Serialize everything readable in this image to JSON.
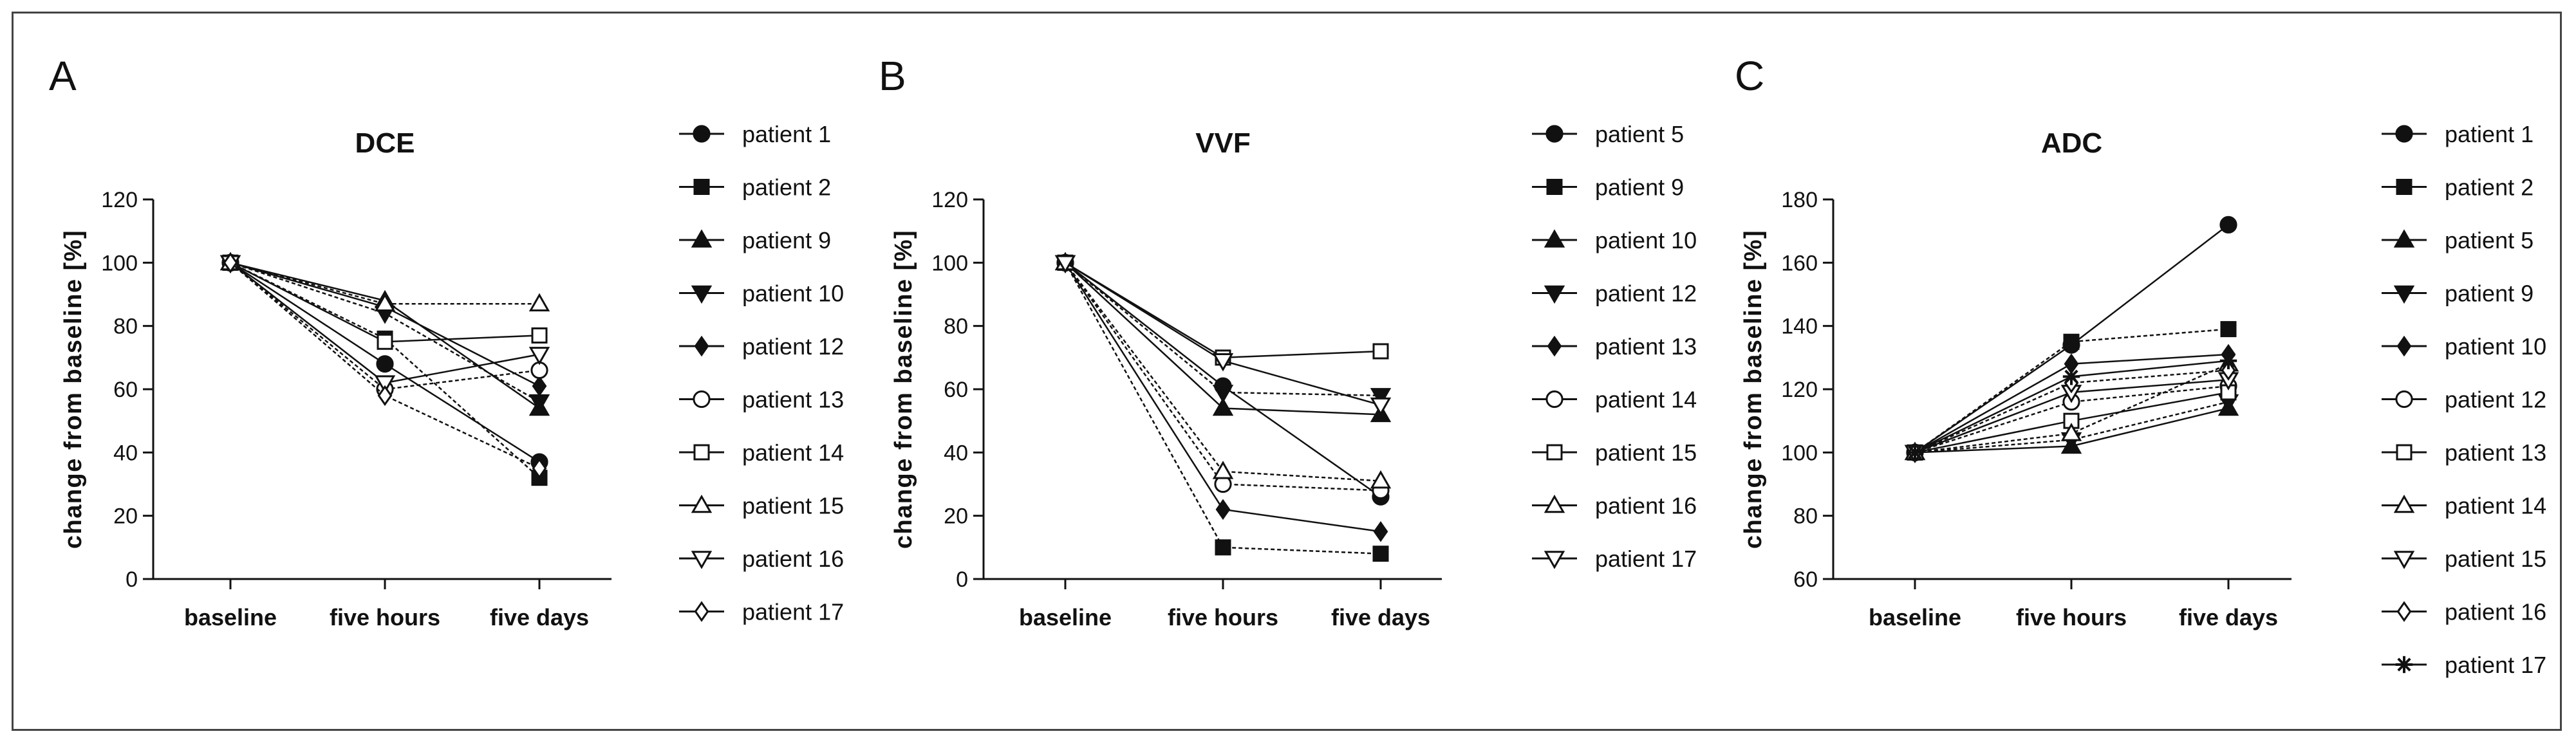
{
  "figure": {
    "panels": [
      "A",
      "B",
      "C"
    ]
  },
  "chart_data": [
    {
      "type": "line",
      "panel": "A",
      "title": "DCE",
      "xlabel": "",
      "ylabel": "change from baseline [%]",
      "categories": [
        "baseline",
        "five hours",
        "five days"
      ],
      "ylim": [
        0,
        120
      ],
      "yticks": [
        0,
        20,
        40,
        60,
        80,
        100,
        120
      ],
      "grid": false,
      "legend": "right",
      "series": [
        {
          "name": "patient 1",
          "marker": "circle",
          "values": [
            100,
            68,
            37
          ]
        },
        {
          "name": "patient 2",
          "marker": "square",
          "values": [
            100,
            76,
            32
          ]
        },
        {
          "name": "patient 9",
          "marker": "triangle",
          "values": [
            100,
            88,
            54
          ]
        },
        {
          "name": "patient 10",
          "marker": "triangle-down",
          "values": [
            100,
            84,
            56
          ]
        },
        {
          "name": "patient 12",
          "marker": "diamond",
          "values": [
            100,
            86,
            61
          ]
        },
        {
          "name": "patient 13",
          "marker": "circle-open",
          "values": [
            100,
            60,
            66
          ]
        },
        {
          "name": "patient 14",
          "marker": "square-open",
          "values": [
            100,
            75,
            77
          ]
        },
        {
          "name": "patient 15",
          "marker": "triangle-open",
          "values": [
            100,
            87,
            87
          ]
        },
        {
          "name": "patient 16",
          "marker": "triangle-down-open",
          "values": [
            100,
            62,
            71
          ]
        },
        {
          "name": "patient 17",
          "marker": "diamond-open",
          "values": [
            100,
            58,
            35
          ]
        }
      ]
    },
    {
      "type": "line",
      "panel": "B",
      "title": "VVF",
      "xlabel": "",
      "ylabel": "change from baseline [%]",
      "categories": [
        "baseline",
        "five hours",
        "five days"
      ],
      "ylim": [
        0,
        120
      ],
      "yticks": [
        0,
        20,
        40,
        60,
        80,
        100,
        120
      ],
      "grid": false,
      "legend": "right",
      "series": [
        {
          "name": "patient 5",
          "marker": "circle",
          "values": [
            100,
            61,
            26
          ]
        },
        {
          "name": "patient 9",
          "marker": "square",
          "values": [
            100,
            10,
            8
          ]
        },
        {
          "name": "patient 10",
          "marker": "triangle",
          "values": [
            100,
            54,
            52
          ]
        },
        {
          "name": "patient 12",
          "marker": "triangle-down",
          "values": [
            100,
            59,
            58
          ]
        },
        {
          "name": "patient 13",
          "marker": "diamond",
          "values": [
            100,
            22,
            15
          ]
        },
        {
          "name": "patient 14",
          "marker": "circle-open",
          "values": [
            100,
            30,
            28
          ]
        },
        {
          "name": "patient 15",
          "marker": "square-open",
          "values": [
            100,
            70,
            72
          ]
        },
        {
          "name": "patient 16",
          "marker": "triangle-open",
          "values": [
            100,
            34,
            31
          ]
        },
        {
          "name": "patient 17",
          "marker": "triangle-down-open",
          "values": [
            100,
            69,
            55
          ]
        }
      ]
    },
    {
      "type": "line",
      "panel": "C",
      "title": "ADC",
      "xlabel": "",
      "ylabel": "change from baseline [%]",
      "categories": [
        "baseline",
        "five hours",
        "five days"
      ],
      "ylim": [
        60,
        180
      ],
      "yticks": [
        60,
        80,
        100,
        120,
        140,
        160,
        180
      ],
      "grid": false,
      "legend": "right",
      "series": [
        {
          "name": "patient 1",
          "marker": "circle",
          "values": [
            100,
            134,
            172
          ]
        },
        {
          "name": "patient 2",
          "marker": "square",
          "values": [
            100,
            135,
            139
          ]
        },
        {
          "name": "patient 5",
          "marker": "triangle",
          "values": [
            100,
            102,
            114
          ]
        },
        {
          "name": "patient 9",
          "marker": "triangle-down",
          "values": [
            100,
            104,
            116
          ]
        },
        {
          "name": "patient 10",
          "marker": "diamond",
          "values": [
            100,
            128,
            131
          ]
        },
        {
          "name": "patient 12",
          "marker": "circle-open",
          "values": [
            100,
            116,
            121
          ]
        },
        {
          "name": "patient 13",
          "marker": "square-open",
          "values": [
            100,
            110,
            119
          ]
        },
        {
          "name": "patient 14",
          "marker": "triangle-open",
          "values": [
            100,
            106,
            128
          ]
        },
        {
          "name": "patient 15",
          "marker": "triangle-down-open",
          "values": [
            100,
            119,
            123
          ]
        },
        {
          "name": "patient 16",
          "marker": "diamond-open",
          "values": [
            100,
            122,
            126
          ]
        },
        {
          "name": "patient 17",
          "marker": "star",
          "values": [
            100,
            124,
            129
          ]
        }
      ]
    }
  ]
}
